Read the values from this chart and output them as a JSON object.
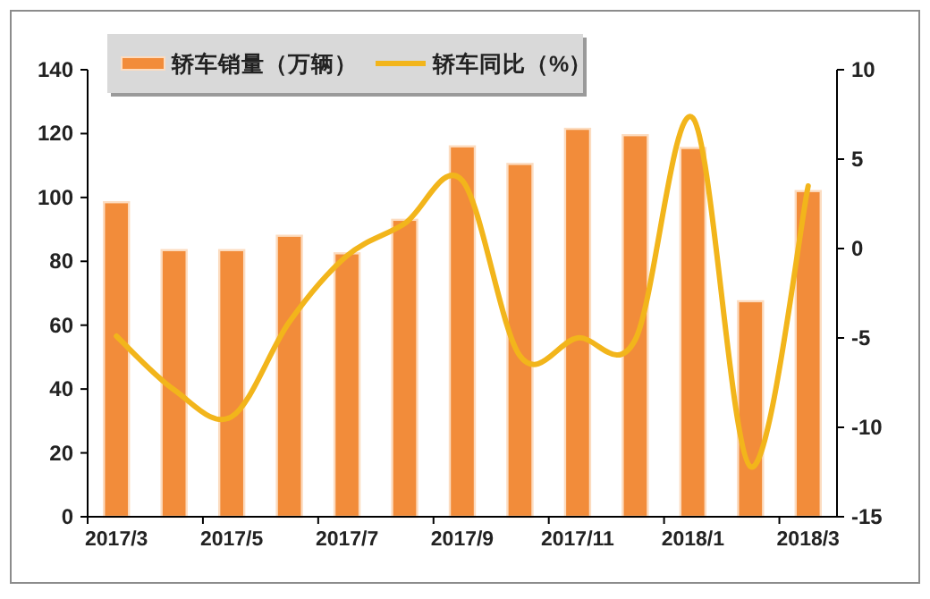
{
  "chart_data": {
    "type": "bar",
    "categories": [
      "2017/3",
      null,
      "2017/5",
      null,
      "2017/7",
      null,
      "2017/9",
      null,
      "2017/11",
      null,
      "2018/1",
      null,
      "2018/3"
    ],
    "series": [
      {
        "name": "轿车销量（万辆）",
        "color": "#f28c3a",
        "values": [
          98.5,
          83.5,
          83.5,
          88,
          82.5,
          93,
          116,
          110.5,
          121.5,
          119.5,
          115.5,
          67.5,
          102
        ]
      },
      {
        "name": "轿车同比（%）",
        "type": "line",
        "axis": "y2",
        "color": "#f2b51b",
        "values": [
          -4.9,
          -7.9,
          -9.4,
          -4.1,
          -0.4,
          1.4,
          3.8,
          -6,
          -5,
          -5.1,
          7.3,
          -12.2,
          3.5
        ]
      }
    ],
    "ylim": [
      0,
      140
    ],
    "yticks": [
      0,
      20,
      40,
      60,
      80,
      100,
      120,
      140
    ],
    "y2lim": [
      -15,
      10
    ],
    "y2ticks": [
      -15,
      -10,
      -5,
      0,
      5,
      10
    ],
    "legend": "top left",
    "grid": false
  }
}
